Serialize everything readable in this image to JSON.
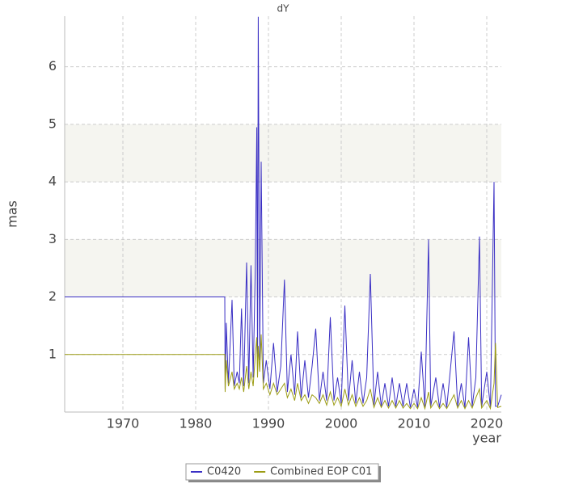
{
  "chart_data": {
    "type": "line",
    "title": "dY",
    "xlabel": "year",
    "ylabel": "mas",
    "x": [
      1962,
      1984,
      1984.05,
      1984.2,
      1984.5,
      1985,
      1985.3,
      1985.7,
      1986,
      1986.3,
      1986.6,
      1987,
      1987.3,
      1987.6,
      1987.9,
      1988.2,
      1988.4,
      1988.5,
      1988.6,
      1988.8,
      1989,
      1989.3,
      1989.7,
      1990.2,
      1990.7,
      1991.2,
      1991.7,
      1992.2,
      1992.6,
      1993.1,
      1993.6,
      1994,
      1994.5,
      1995,
      1995.5,
      1996,
      1996.5,
      1997,
      1997.5,
      1998,
      1998.5,
      1999,
      1999.5,
      2000,
      2000.5,
      2001,
      2001.5,
      2002,
      2002.5,
      2003,
      2003.5,
      2004,
      2004.5,
      2005,
      2005.5,
      2006,
      2006.5,
      2007,
      2007.5,
      2008,
      2008.5,
      2009,
      2009.5,
      2010,
      2010.5,
      2011,
      2011.5,
      2012,
      2012.3,
      2013,
      2013.5,
      2014,
      2014.5,
      2015.5,
      2016,
      2016.5,
      2017,
      2017.5,
      2018,
      2018.5,
      2019,
      2019.3,
      2020,
      2020.5,
      2021,
      2021.2,
      2021.5,
      2022
    ],
    "series": [
      {
        "name": "C0420",
        "color": "#3a2fc4",
        "values": [
          2,
          2,
          0.4,
          1.55,
          0.5,
          1.95,
          0.45,
          0.7,
          0.5,
          1.8,
          0.45,
          2.6,
          0.5,
          2.55,
          0.6,
          2.55,
          4.95,
          0.8,
          6.87,
          0.9,
          4.35,
          0.5,
          0.9,
          0.4,
          1.2,
          0.35,
          0.8,
          2.3,
          0.35,
          1.0,
          0.3,
          1.4,
          0.25,
          0.9,
          0.25,
          0.8,
          1.45,
          0.2,
          0.7,
          0.2,
          1.65,
          0.2,
          0.6,
          0.15,
          1.85,
          0.2,
          0.9,
          0.15,
          0.7,
          0.15,
          0.6,
          2.4,
          0.12,
          0.7,
          0.1,
          0.5,
          0.1,
          0.6,
          0.1,
          0.5,
          0.1,
          0.5,
          0.08,
          0.4,
          0.08,
          1.05,
          0.08,
          3.0,
          0.1,
          0.6,
          0.08,
          0.5,
          0.08,
          1.4,
          0.1,
          0.5,
          0.08,
          1.3,
          0.1,
          0.6,
          3.05,
          0.1,
          0.7,
          0.08,
          4.0,
          0.1,
          0.1,
          0.3
        ]
      },
      {
        "name": "Combined EOP C01",
        "color": "#9c9c14",
        "values": [
          1,
          1,
          0.35,
          0.9,
          0.45,
          0.7,
          0.4,
          0.5,
          0.4,
          0.6,
          0.35,
          0.8,
          0.4,
          0.7,
          0.45,
          1.0,
          1.3,
          0.6,
          1.15,
          0.7,
          1.35,
          0.4,
          0.5,
          0.3,
          0.5,
          0.3,
          0.4,
          0.5,
          0.25,
          0.4,
          0.2,
          0.5,
          0.2,
          0.3,
          0.15,
          0.3,
          0.25,
          0.15,
          0.3,
          0.12,
          0.35,
          0.12,
          0.25,
          0.1,
          0.4,
          0.12,
          0.3,
          0.1,
          0.25,
          0.1,
          0.2,
          0.4,
          0.08,
          0.25,
          0.08,
          0.2,
          0.07,
          0.2,
          0.07,
          0.2,
          0.07,
          0.15,
          0.06,
          0.15,
          0.06,
          0.25,
          0.06,
          0.35,
          0.07,
          0.2,
          0.06,
          0.15,
          0.06,
          0.3,
          0.07,
          0.2,
          0.06,
          0.2,
          0.07,
          0.25,
          0.4,
          0.07,
          0.2,
          0.06,
          0.5,
          1.2,
          0.08,
          0.1
        ]
      }
    ],
    "xlim": [
      1962,
      2022
    ],
    "xticks": [
      1970,
      1980,
      1990,
      2000,
      2010,
      2020
    ],
    "ylim": [
      0,
      6.88
    ],
    "yticks": [
      1,
      2,
      3,
      4,
      5,
      6
    ],
    "grid": true,
    "legend": "bottom"
  }
}
